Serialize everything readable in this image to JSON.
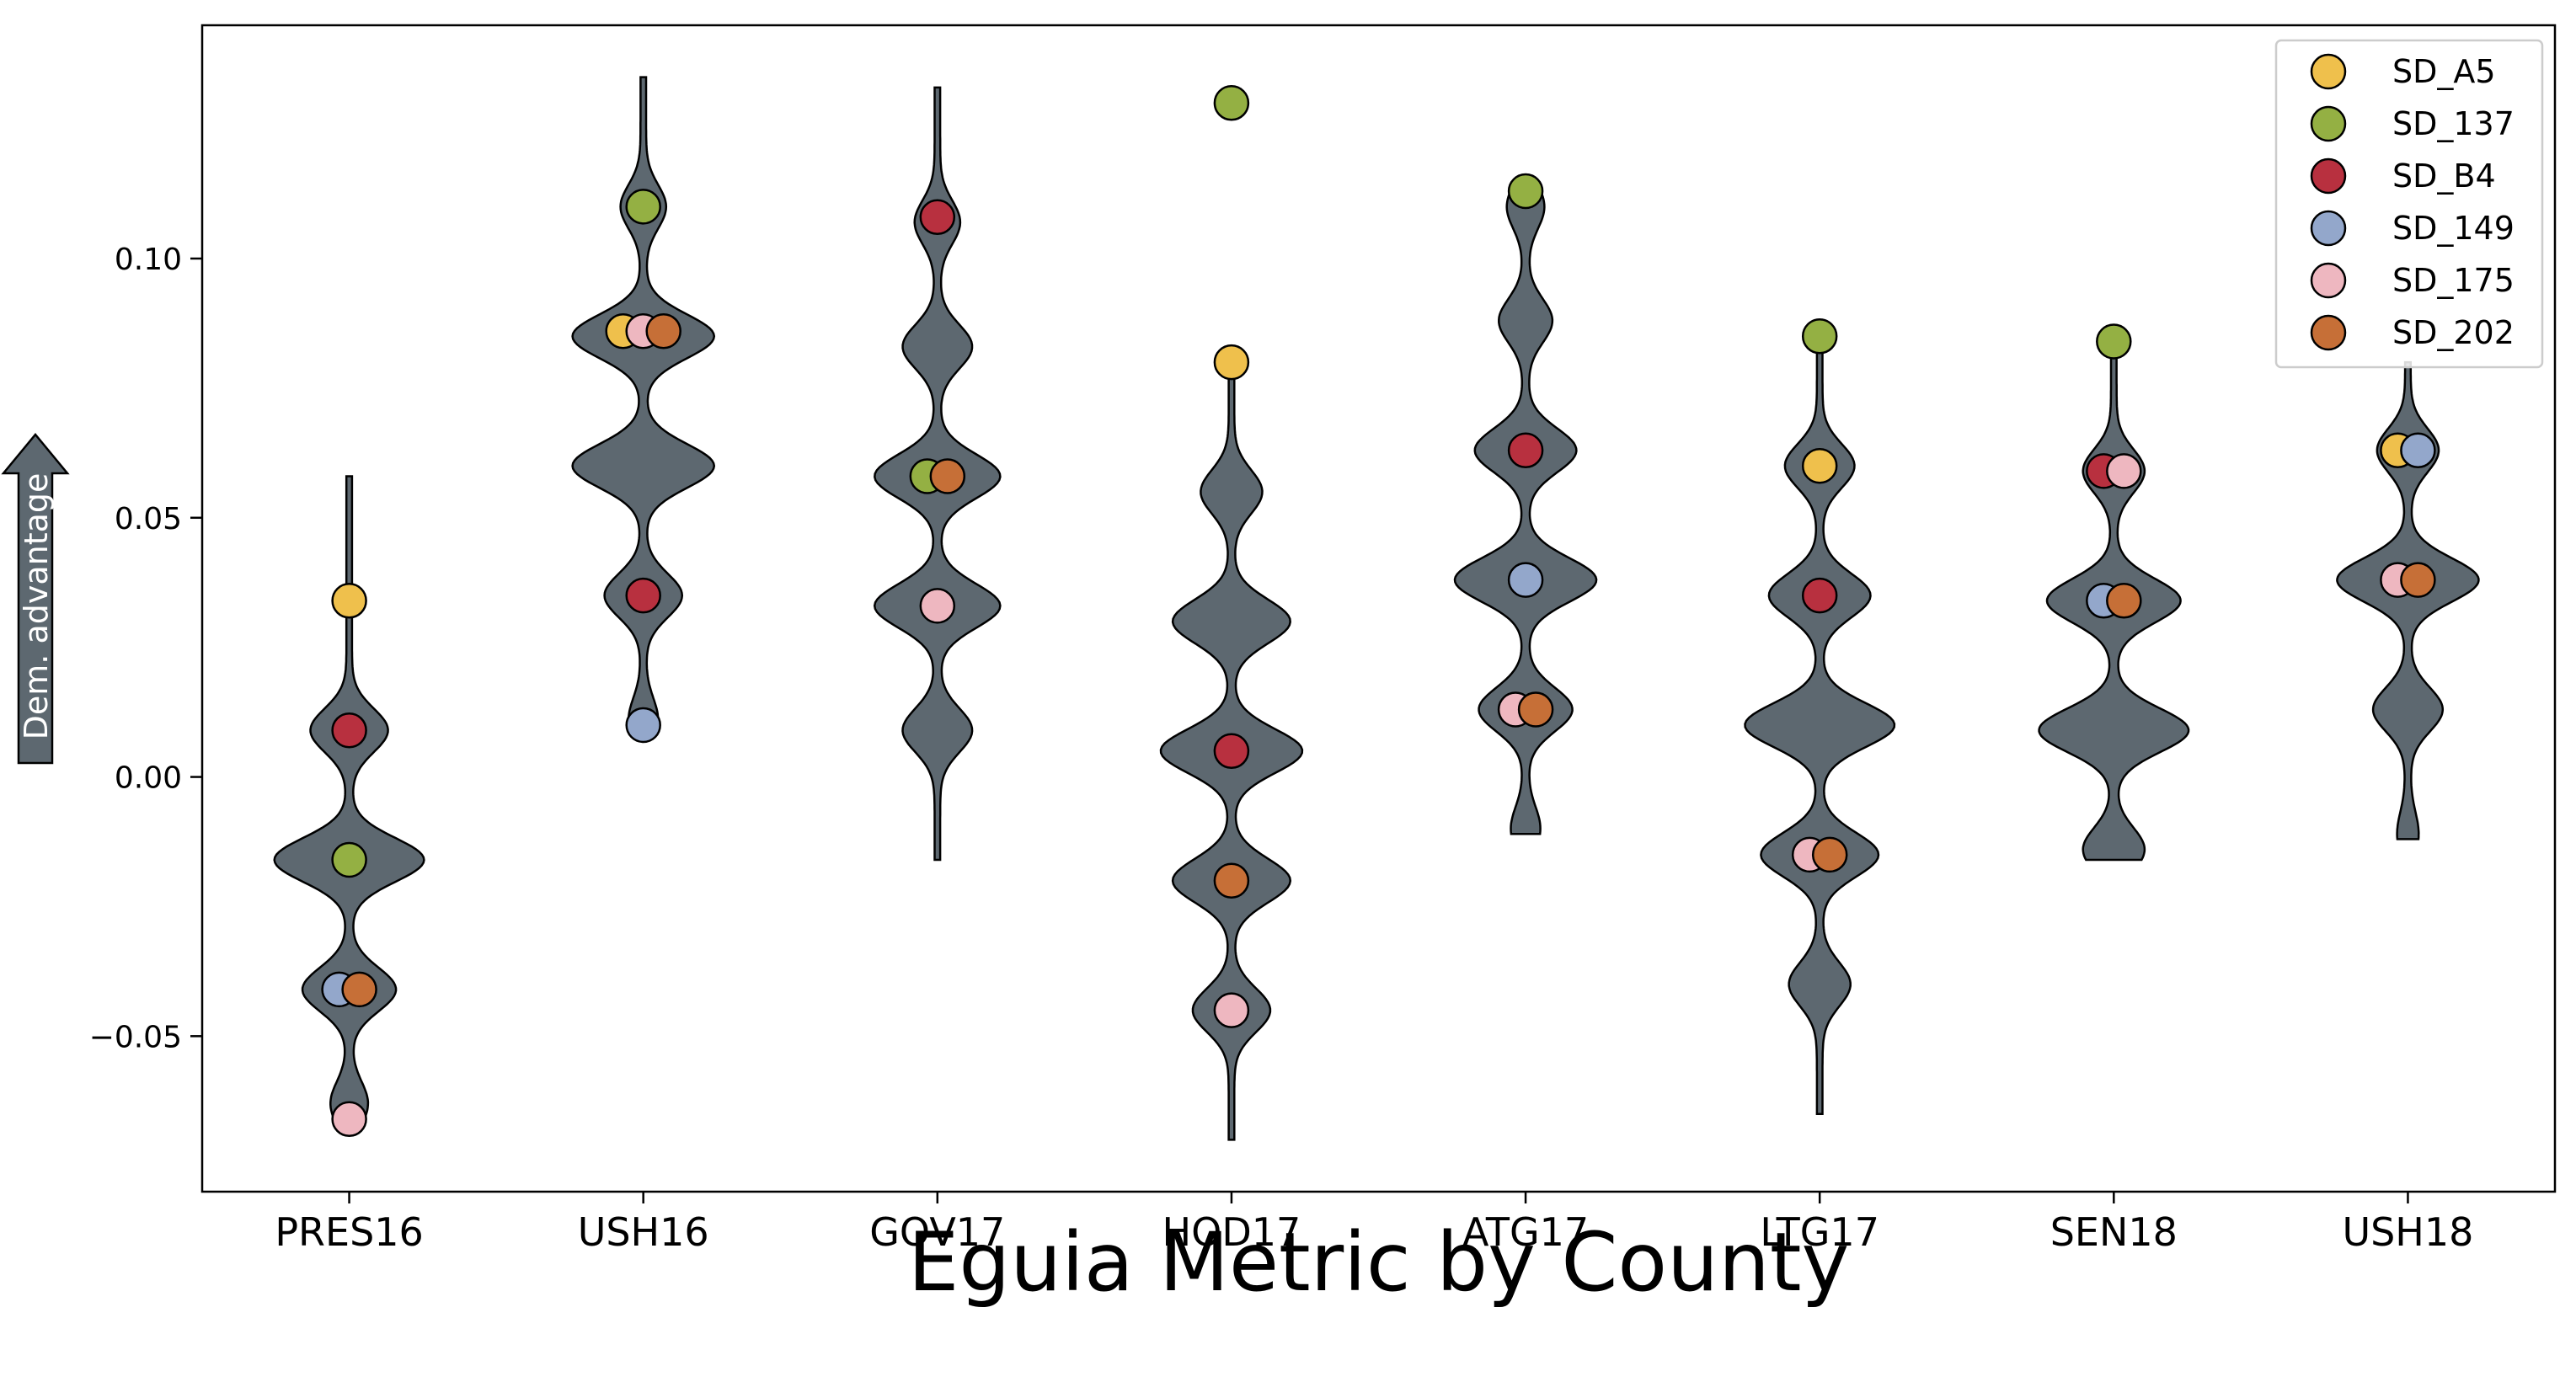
{
  "chart_data": {
    "type": "violin",
    "title": "",
    "xlabel": "Eguia Metric by County",
    "ylabel": "Dem. advantage",
    "ylim": [
      -0.08,
      0.145
    ],
    "yticks": [
      -0.05,
      0.0,
      0.05,
      0.1
    ],
    "ytick_labels": [
      "−0.05",
      "0.00",
      "0.05",
      "0.10"
    ],
    "categories": [
      "PRES16",
      "USH16",
      "GOV17",
      "HOD17",
      "ATG17",
      "LTG17",
      "SEN18",
      "USH18"
    ],
    "grid": false,
    "legend_position": "top-right",
    "violin_color": "#5d6870",
    "violins": [
      {
        "min": -0.068,
        "max": 0.058,
        "modes": [
          [
            0.009,
            0.45
          ],
          [
            -0.016,
            0.9
          ],
          [
            -0.041,
            0.55
          ],
          [
            -0.063,
            0.2
          ]
        ]
      },
      {
        "min": 0.01,
        "max": 0.135,
        "modes": [
          [
            0.11,
            0.25
          ],
          [
            0.085,
            0.85
          ],
          [
            0.06,
            0.85
          ],
          [
            0.035,
            0.45
          ],
          [
            0.011,
            0.15
          ]
        ]
      },
      {
        "min": -0.016,
        "max": 0.133,
        "modes": [
          [
            0.107,
            0.25
          ],
          [
            0.083,
            0.4
          ],
          [
            0.058,
            0.75
          ],
          [
            0.033,
            0.75
          ],
          [
            0.009,
            0.4
          ]
        ]
      },
      {
        "min": -0.07,
        "max": 0.078,
        "modes": [
          [
            0.055,
            0.35
          ],
          [
            0.03,
            0.7
          ],
          [
            0.005,
            0.85
          ],
          [
            -0.02,
            0.7
          ],
          [
            -0.045,
            0.45
          ]
        ]
      },
      {
        "min": -0.011,
        "max": 0.113,
        "modes": [
          [
            0.11,
            0.2
          ],
          [
            0.088,
            0.3
          ],
          [
            0.063,
            0.6
          ],
          [
            0.038,
            0.85
          ],
          [
            0.013,
            0.55
          ],
          [
            -0.01,
            0.15
          ]
        ]
      },
      {
        "min": -0.065,
        "max": 0.083,
        "modes": [
          [
            0.06,
            0.4
          ],
          [
            0.035,
            0.6
          ],
          [
            0.01,
            0.9
          ],
          [
            -0.015,
            0.7
          ],
          [
            -0.04,
            0.35
          ]
        ]
      },
      {
        "min": -0.016,
        "max": 0.083,
        "modes": [
          [
            0.059,
            0.35
          ],
          [
            0.034,
            0.8
          ],
          [
            0.009,
            0.9
          ],
          [
            -0.014,
            0.35
          ]
        ]
      },
      {
        "min": -0.012,
        "max": 0.08,
        "modes": [
          [
            0.063,
            0.35
          ],
          [
            0.038,
            0.85
          ],
          [
            0.013,
            0.4
          ],
          [
            -0.011,
            0.1
          ]
        ]
      }
    ],
    "series": [
      {
        "name": "SD_A5",
        "color": "#efc04c",
        "values": [
          0.034,
          0.086,
          null,
          0.08,
          null,
          0.06,
          null,
          0.063
        ]
      },
      {
        "name": "SD_137",
        "color": "#94b043",
        "values": [
          -0.016,
          0.11,
          0.058,
          0.13,
          0.113,
          0.085,
          0.084,
          null
        ]
      },
      {
        "name": "SD_B4",
        "color": "#b8303f",
        "values": [
          0.009,
          0.035,
          0.108,
          0.005,
          0.063,
          0.035,
          0.059,
          null
        ]
      },
      {
        "name": "SD_149",
        "color": "#93a7cb",
        "values": [
          -0.041,
          0.01,
          null,
          null,
          0.038,
          null,
          0.034,
          0.063
        ]
      },
      {
        "name": "SD_175",
        "color": "#eeb7c0",
        "values": [
          -0.066,
          0.086,
          0.033,
          -0.045,
          0.013,
          -0.015,
          0.059,
          0.038
        ]
      },
      {
        "name": "SD_202",
        "color": "#c66f37",
        "values": [
          -0.041,
          0.086,
          0.058,
          -0.02,
          0.013,
          -0.015,
          0.034,
          0.038
        ]
      }
    ]
  }
}
